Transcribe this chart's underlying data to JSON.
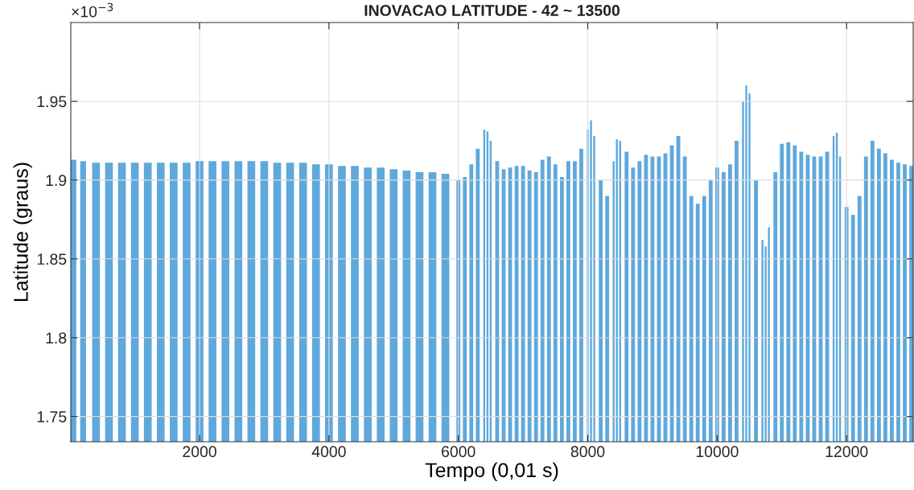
{
  "chart_data": {
    "type": "bar",
    "title": "INOVACAO LATITUDE - 42 ~ 13500",
    "xlabel": "Tempo (0,01 s)",
    "ylabel": "Latitude (graus)",
    "annotations": [
      "×10$^{−3}$"
    ],
    "x": [
      50,
      200,
      400,
      600,
      800,
      1000,
      1200,
      1400,
      1600,
      1800,
      2000,
      2200,
      2400,
      2600,
      2800,
      3000,
      3200,
      3400,
      3600,
      3800,
      4000,
      4200,
      4400,
      4600,
      4800,
      5000,
      5200,
      5400,
      5600,
      5800,
      6000,
      6100,
      6200,
      6300,
      6400,
      6450,
      6500,
      6600,
      6700,
      6800,
      6900,
      7000,
      7100,
      7200,
      7300,
      7400,
      7500,
      7600,
      7700,
      7800,
      7900,
      8000,
      8050,
      8100,
      8200,
      8300,
      8400,
      8450,
      8500,
      8600,
      8700,
      8800,
      8900,
      9000,
      9100,
      9200,
      9300,
      9400,
      9500,
      9600,
      9700,
      9800,
      9900,
      10000,
      10100,
      10200,
      10300,
      10400,
      10450,
      10500,
      10600,
      10700,
      10750,
      10800,
      10900,
      11000,
      11100,
      11200,
      11300,
      11400,
      11500,
      11600,
      11700,
      11800,
      11850,
      11900,
      12000,
      12100,
      12200,
      12300,
      12400,
      12500,
      12600,
      12700,
      12800,
      12900,
      13000
    ],
    "series": [
      {
        "color": "#5fa8dc",
        "values": [
          1.913,
          1.912,
          1.911,
          1.911,
          1.911,
          1.911,
          1.911,
          1.911,
          1.911,
          1.911,
          1.912,
          1.912,
          1.912,
          1.912,
          1.912,
          1.912,
          1.911,
          1.911,
          1.911,
          1.91,
          1.91,
          1.909,
          1.909,
          1.908,
          1.908,
          1.907,
          1.906,
          1.905,
          1.905,
          1.904,
          1.9,
          1.902,
          1.91,
          1.92,
          1.932,
          1.931,
          1.925,
          1.912,
          1.907,
          1.908,
          1.909,
          1.909,
          1.906,
          1.905,
          1.913,
          1.915,
          1.91,
          1.902,
          1.912,
          1.912,
          1.92,
          1.932,
          1.938,
          1.928,
          1.9,
          1.89,
          1.912,
          1.926,
          1.925,
          1.918,
          1.908,
          1.912,
          1.916,
          1.915,
          1.915,
          1.917,
          1.922,
          1.928,
          1.915,
          1.89,
          1.885,
          1.89,
          1.9,
          1.908,
          1.905,
          1.91,
          1.925,
          1.95,
          1.96,
          1.955,
          1.9,
          1.862,
          1.858,
          1.87,
          1.905,
          1.923,
          1.924,
          1.922,
          1.918,
          1.916,
          1.915,
          1.915,
          1.918,
          1.928,
          1.93,
          1.915,
          1.883,
          1.878,
          1.89,
          1.915,
          1.925,
          1.92,
          1.917,
          1.913,
          1.911,
          1.91,
          1.909
        ]
      }
    ],
    "xlim": [
      10,
      13030
    ],
    "xticks": [
      2000,
      4000,
      6000,
      8000,
      10000,
      12000
    ],
    "ylim": [
      1.734,
      2.0
    ],
    "yticks": [
      1.75,
      1.8,
      1.85,
      1.9,
      1.95
    ],
    "grid": true
  }
}
